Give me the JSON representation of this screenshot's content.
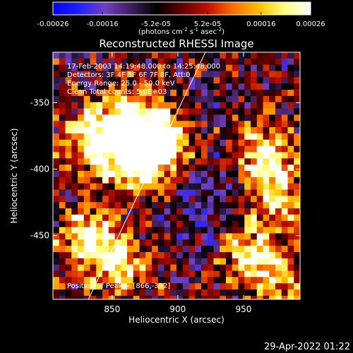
{
  "chart_data": {
    "type": "heatmap",
    "title": "Reconstructed RHESSI Image",
    "xlabel": "Heliocentric X (arcsec)",
    "ylabel": "Heliocentric Y (arcsec)",
    "xlim": [
      805,
      993
    ],
    "ylim": [
      -498,
      -312
    ],
    "x_ticks": [
      850,
      900,
      950
    ],
    "y_ticks": [
      -350,
      -400,
      -450
    ],
    "colorbar": {
      "min": -0.00026,
      "max": 0.00026,
      "tick_values": [
        -0.00026,
        -0.00016,
        -5.2e-05,
        5.2e-05,
        0.00016,
        0.00026
      ],
      "tick_labels": [
        "-0.00026",
        "-0.00016",
        "-5.2e-05",
        "5.2e-05",
        "0.00016",
        "0.00026"
      ],
      "unit_text": "(photons cm",
      "unit_sup1": "-2",
      "unit_mid": " s",
      "unit_sup2": "-1",
      "unit_end": " asec",
      "unit_sup3": "-2",
      "unit_close": ")",
      "colors": [
        "#0000ff",
        "#2020ff",
        "#7040c0",
        "#402060",
        "#000000",
        "#600000",
        "#c01000",
        "#ff7000",
        "#ffc000",
        "#ffff80",
        "#ffffff"
      ]
    },
    "annotations": [
      "17-Feb-2003 14:19:48.000 to 14:25:48.000",
      "Detectors: 3F 4F 5F 6F 7F 8F, Att:0",
      "Energy Range: 25.0 - 50.0 keV",
      "Clean    Total counts: 5.0E+03"
    ],
    "peak_label": "Position of Peak = [866,-392]",
    "peak": [
      866,
      -392
    ],
    "limb_line": {
      "from": [
        832,
        -498
      ],
      "to": [
        921,
        -312
      ]
    },
    "bright_sources": [
      {
        "x": 862,
        "y": -360,
        "strength": 1.0
      },
      {
        "x": 888,
        "y": -378,
        "strength": 0.9
      },
      {
        "x": 866,
        "y": -392,
        "strength": 1.0
      },
      {
        "x": 832,
        "y": -375,
        "strength": 0.75
      },
      {
        "x": 830,
        "y": -450,
        "strength": 0.8
      },
      {
        "x": 855,
        "y": -470,
        "strength": 0.6
      },
      {
        "x": 962,
        "y": -385,
        "strength": 0.85
      },
      {
        "x": 975,
        "y": -420,
        "strength": 0.6
      },
      {
        "x": 950,
        "y": -460,
        "strength": 0.7
      },
      {
        "x": 975,
        "y": -480,
        "strength": 0.55
      }
    ],
    "dim_sources": [
      {
        "x": 920,
        "y": -440,
        "strength": 0.6
      },
      {
        "x": 910,
        "y": -410,
        "strength": 0.4
      },
      {
        "x": 935,
        "y": -380,
        "strength": 0.35
      }
    ],
    "background_level": -0.12
  },
  "footer": {
    "timestamp": "29-Apr-2022 01:22"
  }
}
